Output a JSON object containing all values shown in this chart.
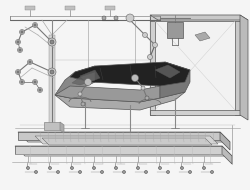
{
  "bg_color": "#f5f5f5",
  "fig_width": 2.5,
  "fig_height": 1.9,
  "dpi": 100,
  "line_color": "#555555",
  "dark_color": "#222222",
  "light_gray": "#d8d8d8",
  "mid_gray": "#aaaaaa",
  "very_light": "#eeeeee",
  "car_dark": "#2a2a2a",
  "car_mid": "#888888",
  "car_light": "#cccccc",
  "conveyor_top": "#dcdcdc",
  "conveyor_side": "#b8b8b8",
  "robot_color": "#666666"
}
